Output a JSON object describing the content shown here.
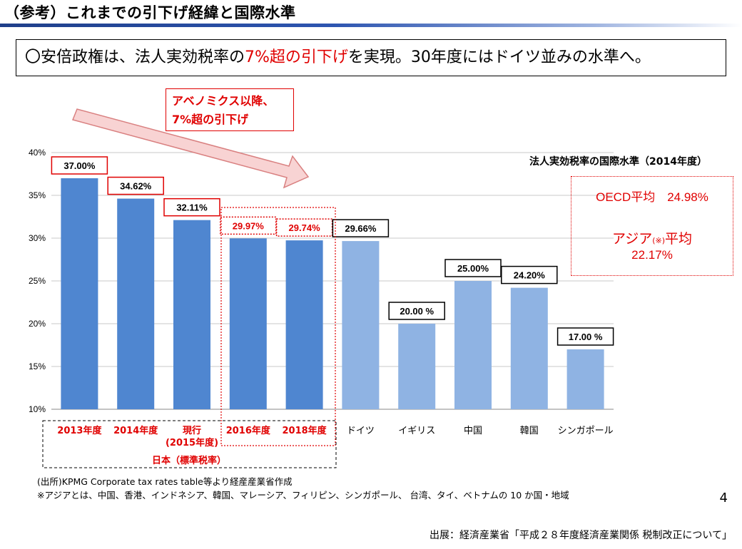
{
  "title": "（参考）これまでの引下げ経緯と国際水準",
  "summary": {
    "prefix": "〇安倍政権は、法人実効税率の",
    "highlight": "7%超の引下げ",
    "suffix": "を実現。30年度にはドイツ並みの水準へ。"
  },
  "callout": {
    "line1": "アベノミクス以降、",
    "line2": "7%超の引下げ"
  },
  "intl": {
    "title": "法人実効税率の国際水準（2014年度）",
    "oecd": "OECD平均　24.98%",
    "asia_label": "アジア",
    "asia_mark": "(※)",
    "asia_suffix": "平均",
    "asia_value": "22.17%"
  },
  "japan_label": "日本（標準税率）",
  "notes": {
    "source_line": "(出所)KPMG Corporate tax rates table等より経産産業省作成",
    "asia_note": "※アジアとは、中国、香港、インドネシア、韓国、マレーシア、フィリピン、シンガポール、 台湾、タイ、ベトナムの 10 か国・地域"
  },
  "page_number": "4",
  "source": "出展：経済産業省「平成２８年度経済産業関係 税制改正について」",
  "colors": {
    "japan_bar": "#4f86d0",
    "other_bar": "#8fb3e3",
    "accent_red": "#e00000"
  },
  "chart_data": {
    "type": "bar",
    "categories": [
      [
        "2013年度"
      ],
      [
        "2014年度"
      ],
      [
        "現行",
        "(2015年度)"
      ],
      [
        "2016年度"
      ],
      [
        "2018年度"
      ],
      [
        "ドイツ"
      ],
      [
        "イギリス"
      ],
      [
        "中国"
      ],
      [
        "韓国"
      ],
      [
        "シンガポール"
      ]
    ],
    "values": [
      37.0,
      34.62,
      32.11,
      29.97,
      29.74,
      29.66,
      20.0,
      25.0,
      24.2,
      17.0
    ],
    "data_labels": [
      "37.00%",
      "34.62%",
      "32.11%",
      "29.97%",
      "29.74%",
      "29.66%",
      "20.00 %",
      "25.00%",
      "24.20%",
      "17.00 %"
    ],
    "japan": [
      true,
      true,
      true,
      true,
      true,
      false,
      false,
      false,
      false,
      false
    ],
    "red_labels": [
      false,
      false,
      false,
      true,
      true,
      false,
      false,
      false,
      false,
      false
    ],
    "y_ticks": [
      "10%",
      "15%",
      "20%",
      "25%",
      "30%",
      "35%",
      "40%"
    ],
    "ylim": [
      10,
      40
    ],
    "grid": true
  }
}
